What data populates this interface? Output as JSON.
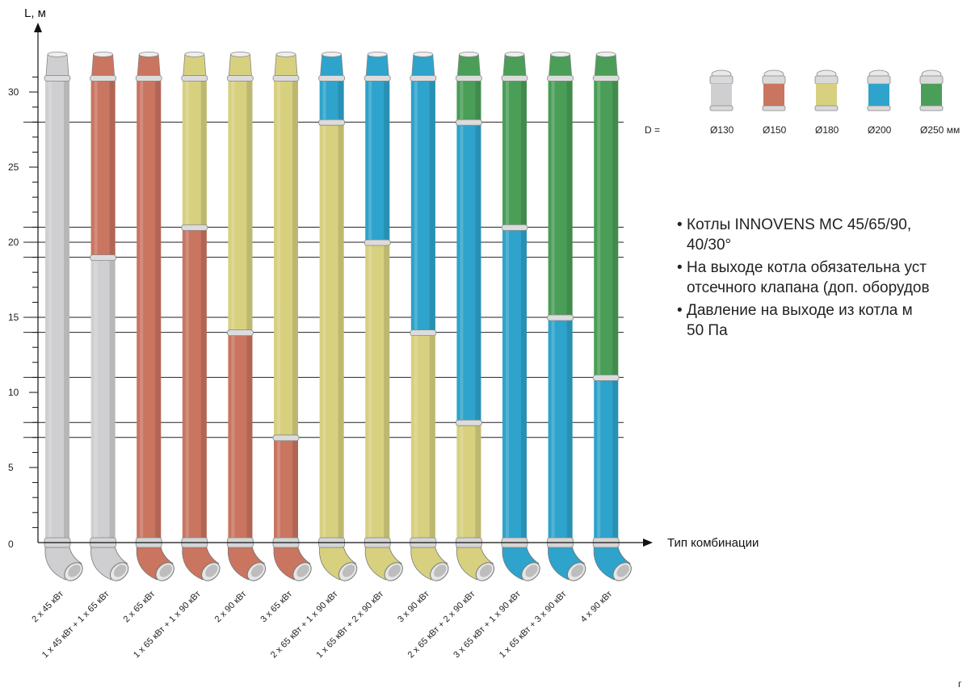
{
  "chart_data": {
    "type": "bar",
    "xlabel": "Тип комбинации",
    "ylabel": "L, м",
    "ylim": [
      0,
      32
    ],
    "yticks": [
      0,
      5,
      10,
      15,
      20,
      25,
      30
    ],
    "diameter_prefix": "D =",
    "legend": [
      {
        "label": "Ø130",
        "color": "#cfcfd1"
      },
      {
        "label": "Ø150",
        "color": "#c97560"
      },
      {
        "label": "Ø180",
        "color": "#d7d07f"
      },
      {
        "label": "Ø200",
        "color": "#2ea3cb"
      },
      {
        "label": "Ø250 мм",
        "color": "#4a9e57"
      }
    ],
    "categories": [
      "2 x 45 кВт",
      "1 x 45 кВт + 1 x 65 кВт",
      "2 x 65 кВт",
      "1 x 65 кВт + 1 x 90 кВт",
      "2 x 90 кВт",
      "3 x 65 кВт",
      "2 x 65 кВт + 1 x 90 кВт",
      "1 x 65 кВт + 2 x 90 кВт",
      "3 x 90 кВт",
      "2 x 65 кВт + 2 x 90 кВт",
      "3 x 65 кВт + 1 x 90 кВт",
      "1 x 65 кВт + 3 x 90 кВт",
      "4 x 90 кВт"
    ],
    "reference_lines": [
      28,
      21,
      20,
      19,
      15,
      14,
      11,
      8,
      7
    ],
    "columns": [
      {
        "segments": [
          {
            "diameter": "Ø130",
            "from": 0,
            "to": 31
          }
        ]
      },
      {
        "segments": [
          {
            "diameter": "Ø130",
            "from": 0,
            "to": 19
          },
          {
            "diameter": "Ø150",
            "from": 19,
            "to": 31
          }
        ]
      },
      {
        "segments": [
          {
            "diameter": "Ø150",
            "from": 0,
            "to": 31
          }
        ]
      },
      {
        "segments": [
          {
            "diameter": "Ø150",
            "from": 0,
            "to": 21
          },
          {
            "diameter": "Ø180",
            "from": 21,
            "to": 31
          }
        ]
      },
      {
        "segments": [
          {
            "diameter": "Ø150",
            "from": 0,
            "to": 14
          },
          {
            "diameter": "Ø180",
            "from": 14,
            "to": 31
          }
        ]
      },
      {
        "segments": [
          {
            "diameter": "Ø150",
            "from": 0,
            "to": 7
          },
          {
            "diameter": "Ø180",
            "from": 7,
            "to": 31
          }
        ]
      },
      {
        "segments": [
          {
            "diameter": "Ø180",
            "from": 0,
            "to": 28
          },
          {
            "diameter": "Ø200",
            "from": 28,
            "to": 31
          }
        ]
      },
      {
        "segments": [
          {
            "diameter": "Ø180",
            "from": 0,
            "to": 20
          },
          {
            "diameter": "Ø200",
            "from": 20,
            "to": 31
          }
        ]
      },
      {
        "segments": [
          {
            "diameter": "Ø180",
            "from": 0,
            "to": 14
          },
          {
            "diameter": "Ø200",
            "from": 14,
            "to": 31
          }
        ]
      },
      {
        "segments": [
          {
            "diameter": "Ø180",
            "from": 0,
            "to": 8
          },
          {
            "diameter": "Ø200",
            "from": 8,
            "to": 28
          },
          {
            "diameter": "Ø250 мм",
            "from": 28,
            "to": 31
          }
        ]
      },
      {
        "segments": [
          {
            "diameter": "Ø200",
            "from": 0,
            "to": 21
          },
          {
            "diameter": "Ø250 мм",
            "from": 21,
            "to": 31
          }
        ]
      },
      {
        "segments": [
          {
            "diameter": "Ø200",
            "from": 0,
            "to": 15
          },
          {
            "diameter": "Ø250 мм",
            "from": 15,
            "to": 31
          }
        ]
      },
      {
        "segments": [
          {
            "diameter": "Ø200",
            "from": 0,
            "to": 11
          },
          {
            "diameter": "Ø250 мм",
            "from": 11,
            "to": 31
          }
        ]
      }
    ],
    "grid": false
  },
  "notes": [
    "Котлы INNOVENS MC 45/65/90,",
    "40/30°",
    "На выходе котла обязательна уст",
    "отсечного клапана (доп. оборудов",
    "Давление на выходе из котла м",
    "50 Па"
  ],
  "bullet": "•",
  "page_number": "г"
}
